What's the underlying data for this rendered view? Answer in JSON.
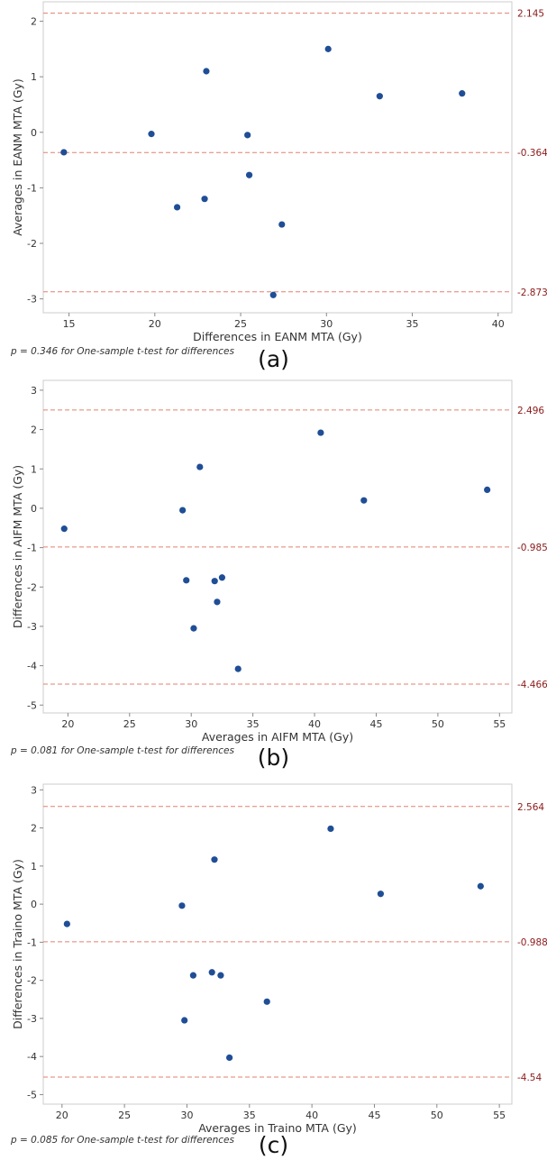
{
  "chart_data": [
    {
      "type": "scatter",
      "panel_label": "(a)",
      "xlabel": "Differences in EANM MTA (Gy)",
      "ylabel": "Averages in EANM MTA (Gy)",
      "xlim": [
        13.5,
        40.8
      ],
      "ylim": [
        -3.25,
        2.35
      ],
      "xticks": [
        15,
        20,
        25,
        30,
        35,
        40
      ],
      "yticks": [
        -3,
        -2,
        -1,
        0,
        1,
        2
      ],
      "reference_lines": [
        {
          "value": 2.145,
          "label": "2.145"
        },
        {
          "value": -0.364,
          "label": "-0.364"
        },
        {
          "value": -2.873,
          "label": "-2.873"
        }
      ],
      "points": [
        {
          "x": 14.7,
          "y": -0.36
        },
        {
          "x": 19.8,
          "y": -0.03
        },
        {
          "x": 21.3,
          "y": -1.35
        },
        {
          "x": 22.9,
          "y": -1.2
        },
        {
          "x": 23.0,
          "y": 1.1
        },
        {
          "x": 25.4,
          "y": -0.05
        },
        {
          "x": 25.5,
          "y": -0.77
        },
        {
          "x": 26.9,
          "y": -2.93
        },
        {
          "x": 27.4,
          "y": -1.66
        },
        {
          "x": 30.1,
          "y": 1.5
        },
        {
          "x": 33.1,
          "y": 0.65
        },
        {
          "x": 37.9,
          "y": 0.7
        }
      ],
      "note": "p = 0.346 for One-sample t-test for differences"
    },
    {
      "type": "scatter",
      "panel_label": "(b)",
      "xlabel": "Averages in AIFM MTA (Gy)",
      "ylabel": "Differences in AIFM MTA (Gy)",
      "xlim": [
        18,
        56
      ],
      "ylim": [
        -5.2,
        3.25
      ],
      "xticks": [
        20,
        25,
        30,
        35,
        40,
        45,
        50,
        55
      ],
      "yticks": [
        -5,
        -4,
        -3,
        -2,
        -1,
        0,
        1,
        2,
        3
      ],
      "reference_lines": [
        {
          "value": 2.496,
          "label": "2.496"
        },
        {
          "value": -0.985,
          "label": "-0.985"
        },
        {
          "value": -4.466,
          "label": "-4.466"
        }
      ],
      "points": [
        {
          "x": 19.7,
          "y": -0.52
        },
        {
          "x": 29.3,
          "y": -0.05
        },
        {
          "x": 29.6,
          "y": -1.83
        },
        {
          "x": 30.2,
          "y": -3.05
        },
        {
          "x": 30.7,
          "y": 1.05
        },
        {
          "x": 31.9,
          "y": -1.85
        },
        {
          "x": 32.1,
          "y": -2.38
        },
        {
          "x": 32.5,
          "y": -1.76
        },
        {
          "x": 33.8,
          "y": -4.08
        },
        {
          "x": 40.5,
          "y": 1.92
        },
        {
          "x": 44.0,
          "y": 0.2
        },
        {
          "x": 54.0,
          "y": 0.47
        }
      ],
      "note": "p = 0.081 for One-sample t-test for differences"
    },
    {
      "type": "scatter",
      "panel_label": "(c)",
      "xlabel": "Averages in Traino MTA (Gy)",
      "ylabel": "Differences in Traino MTA (Gy)",
      "xlim": [
        18.5,
        56
      ],
      "ylim": [
        -5.25,
        3.15
      ],
      "xticks": [
        20,
        25,
        30,
        35,
        40,
        45,
        50,
        55
      ],
      "yticks": [
        -5,
        -4,
        -3,
        -2,
        -1,
        0,
        1,
        2,
        3
      ],
      "reference_lines": [
        {
          "value": 2.564,
          "label": "2.564"
        },
        {
          "value": -0.988,
          "label": "-0.988"
        },
        {
          "value": -4.54,
          "label": "-4.54"
        }
      ],
      "points": [
        {
          "x": 20.4,
          "y": -0.52
        },
        {
          "x": 29.6,
          "y": -0.04
        },
        {
          "x": 29.8,
          "y": -3.05
        },
        {
          "x": 30.5,
          "y": -1.87
        },
        {
          "x": 32.0,
          "y": -1.79
        },
        {
          "x": 32.2,
          "y": 1.17
        },
        {
          "x": 32.7,
          "y": -1.87
        },
        {
          "x": 33.4,
          "y": -4.03
        },
        {
          "x": 36.4,
          "y": -2.56
        },
        {
          "x": 41.5,
          "y": 1.98
        },
        {
          "x": 45.5,
          "y": 0.27
        },
        {
          "x": 53.5,
          "y": 0.47
        }
      ],
      "note": "p = 0.085 for One-sample t-test for differences"
    }
  ],
  "colors": {
    "point": "#1f4e96",
    "reference_line": "#e08070",
    "reference_label": "#8b1a1a",
    "frame": "#cccccc",
    "tick_text": "#333333"
  }
}
